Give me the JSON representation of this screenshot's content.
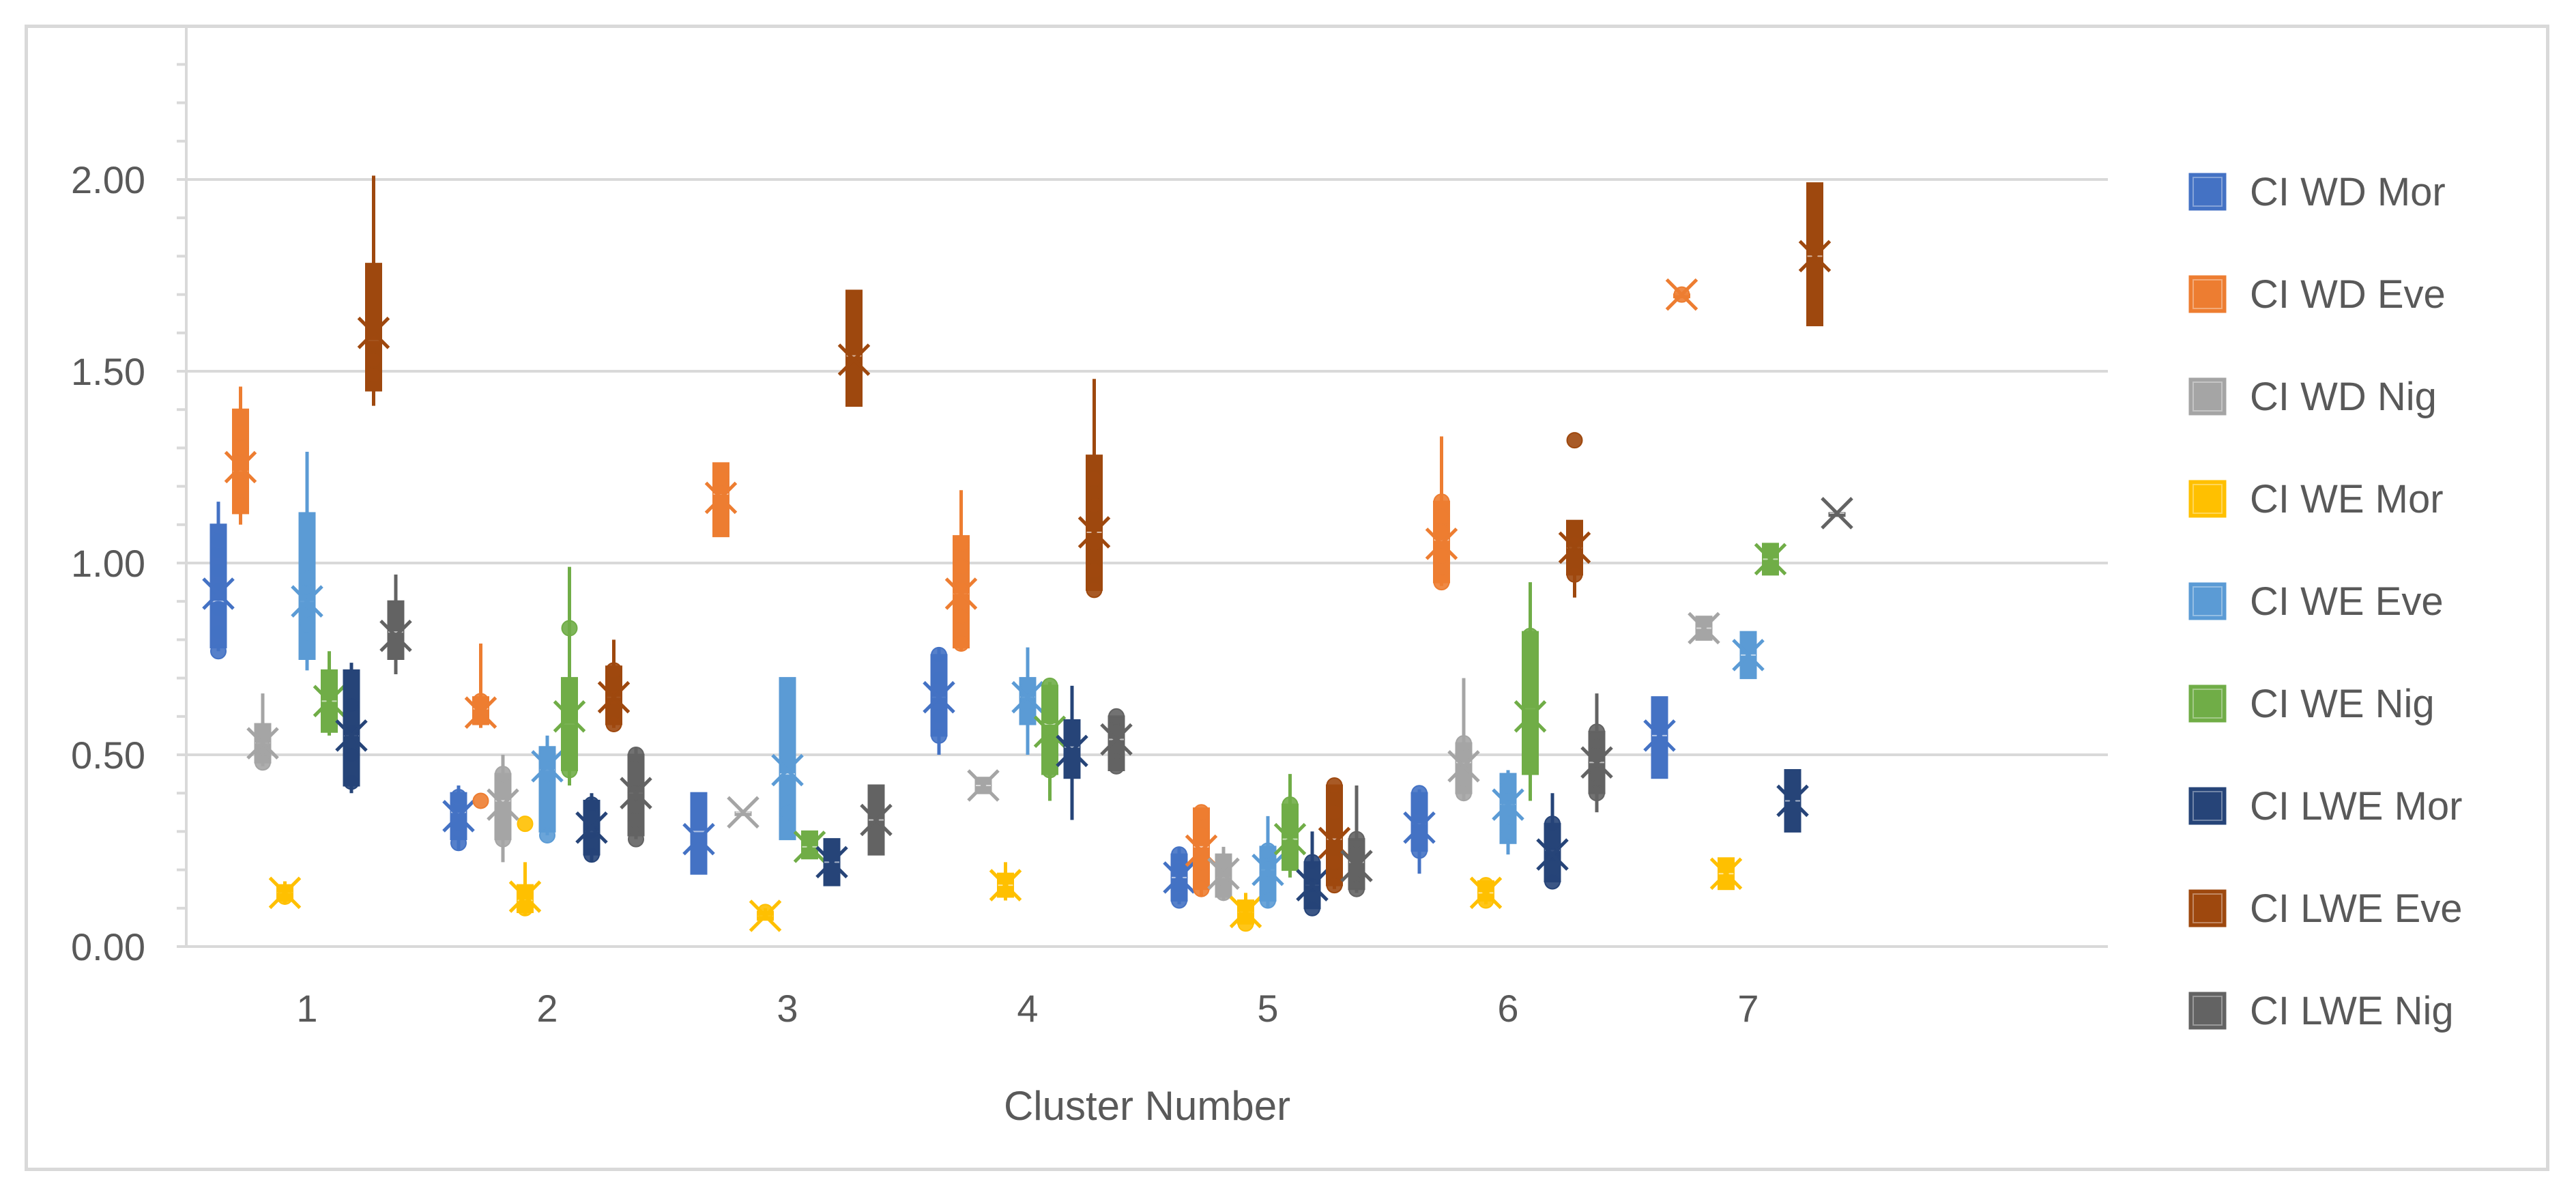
{
  "chart_data": {
    "type": "box",
    "title": "",
    "xlabel": "Cluster Number",
    "ylabel": "",
    "categories": [
      "1",
      "2",
      "3",
      "4",
      "5",
      "6",
      "7"
    ],
    "ylim": [
      0,
      2.3
    ],
    "y_ticks": [
      "0.00",
      "0.50",
      "1.00",
      "1.50",
      "2.00"
    ],
    "y_tick_values": [
      0,
      0.5,
      1.0,
      1.5,
      2.0
    ],
    "grid": true,
    "legend_position": "right",
    "series": [
      {
        "name": "CI WD Mor",
        "color": "#4472c4",
        "boxes": [
          {
            "cluster": 1,
            "min": 0.77,
            "q1": 0.78,
            "median": 0.9,
            "q3": 1.1,
            "max": 1.16,
            "mean": 0.92,
            "points": [
              0.77,
              0.82,
              0.88,
              0.93,
              0.98,
              1.03,
              1.06
            ]
          },
          {
            "cluster": 2,
            "min": 0.25,
            "q1": 0.28,
            "median": 0.35,
            "q3": 0.4,
            "max": 0.42,
            "mean": 0.34,
            "points": [
              0.27,
              0.32,
              0.37,
              0.39
            ]
          },
          {
            "cluster": 3,
            "min": 0.19,
            "q1": 0.19,
            "median": 0.3,
            "q3": 0.4,
            "max": 0.4,
            "mean": 0.28,
            "points": []
          },
          {
            "cluster": 4,
            "min": 0.5,
            "q1": 0.55,
            "median": 0.65,
            "q3": 0.76,
            "max": 0.78,
            "mean": 0.65,
            "points": [
              0.55,
              0.6,
              0.65,
              0.7,
              0.76
            ]
          },
          {
            "cluster": 5,
            "min": 0.11,
            "q1": 0.12,
            "median": 0.18,
            "q3": 0.24,
            "max": 0.26,
            "mean": 0.18,
            "points": [
              0.12,
              0.16,
              0.2,
              0.24
            ]
          },
          {
            "cluster": 6,
            "min": 0.19,
            "q1": 0.25,
            "median": 0.32,
            "q3": 0.4,
            "max": 0.41,
            "mean": 0.31,
            "points": [
              0.25,
              0.32,
              0.36,
              0.4
            ]
          },
          {
            "cluster": 7,
            "min": 0.44,
            "q1": 0.44,
            "median": 0.55,
            "q3": 0.65,
            "max": 0.65,
            "mean": 0.55,
            "points": []
          }
        ]
      },
      {
        "name": "CI WD Eve",
        "color": "#ed7d31",
        "boxes": [
          {
            "cluster": 1,
            "min": 1.1,
            "q1": 1.13,
            "median": 1.24,
            "q3": 1.4,
            "max": 1.46,
            "mean": 1.25,
            "points": [
              1.15,
              1.2,
              1.25,
              1.3,
              1.34
            ]
          },
          {
            "cluster": 2,
            "min": 0.57,
            "q1": 0.58,
            "median": 0.62,
            "q3": 0.65,
            "max": 0.79,
            "mean": 0.61,
            "points": [
              0.38,
              0.6,
              0.64
            ]
          },
          {
            "cluster": 3,
            "min": 1.07,
            "q1": 1.07,
            "median": 1.18,
            "q3": 1.26,
            "max": 1.26,
            "mean": 1.17,
            "points": [
              1.2,
              1.22
            ]
          },
          {
            "cluster": 4,
            "min": 0.77,
            "q1": 0.78,
            "median": 0.92,
            "q3": 1.07,
            "max": 1.19,
            "mean": 0.92,
            "points": [
              0.79,
              0.86,
              0.93,
              0.99,
              1.05
            ]
          },
          {
            "cluster": 5,
            "min": 0.13,
            "q1": 0.15,
            "median": 0.26,
            "q3": 0.36,
            "max": 0.36,
            "mean": 0.25,
            "points": [
              0.15,
              0.22,
              0.29,
              0.35
            ]
          },
          {
            "cluster": 6,
            "min": 0.94,
            "q1": 0.95,
            "median": 1.06,
            "q3": 1.16,
            "max": 1.33,
            "mean": 1.05,
            "points": [
              0.95,
              1.02,
              1.08,
              1.12,
              1.16
            ]
          },
          {
            "cluster": 7,
            "min": 1.7,
            "q1": 1.7,
            "median": 1.7,
            "q3": 1.7,
            "max": 1.7,
            "mean": 1.7,
            "points": [
              1.7
            ]
          }
        ]
      },
      {
        "name": "CI WD Nig",
        "color": "#a5a5a5",
        "boxes": [
          {
            "cluster": 1,
            "min": 0.47,
            "q1": 0.48,
            "median": 0.53,
            "q3": 0.58,
            "max": 0.66,
            "mean": 0.53,
            "points": [
              0.48,
              0.52,
              0.56
            ]
          },
          {
            "cluster": 2,
            "min": 0.22,
            "q1": 0.28,
            "median": 0.38,
            "q3": 0.45,
            "max": 0.5,
            "mean": 0.37,
            "points": [
              0.28,
              0.35,
              0.42,
              0.45
            ]
          },
          {
            "cluster": 3,
            "min": 0.35,
            "q1": 0.35,
            "median": 0.35,
            "q3": 0.35,
            "max": 0.35,
            "mean": 0.35,
            "points": []
          },
          {
            "cluster": 4,
            "min": 0.4,
            "q1": 0.4,
            "median": 0.42,
            "q3": 0.44,
            "max": 0.44,
            "mean": 0.42,
            "points": []
          },
          {
            "cluster": 5,
            "min": 0.12,
            "q1": 0.13,
            "median": 0.18,
            "q3": 0.24,
            "max": 0.26,
            "mean": 0.19,
            "points": [
              0.14,
              0.18,
              0.22
            ]
          },
          {
            "cluster": 6,
            "min": 0.38,
            "q1": 0.4,
            "median": 0.48,
            "q3": 0.53,
            "max": 0.7,
            "mean": 0.47,
            "points": [
              0.4,
              0.45,
              0.5,
              0.53
            ]
          },
          {
            "cluster": 7,
            "min": 0.8,
            "q1": 0.8,
            "median": 0.83,
            "q3": 0.86,
            "max": 0.86,
            "mean": 0.83,
            "points": []
          }
        ]
      },
      {
        "name": "CI WE Mor",
        "color": "#ffc000",
        "boxes": [
          {
            "cluster": 1,
            "min": 0.11,
            "q1": 0.12,
            "median": 0.14,
            "q3": 0.16,
            "max": 0.17,
            "mean": 0.14,
            "points": [
              0.13
            ]
          },
          {
            "cluster": 2,
            "min": 0.08,
            "q1": 0.09,
            "median": 0.12,
            "q3": 0.16,
            "max": 0.22,
            "mean": 0.13,
            "points": [
              0.1,
              0.32
            ]
          },
          {
            "cluster": 3,
            "min": 0.07,
            "q1": 0.07,
            "median": 0.08,
            "q3": 0.09,
            "max": 0.1,
            "mean": 0.08,
            "points": [
              0.09
            ]
          },
          {
            "cluster": 4,
            "min": 0.12,
            "q1": 0.13,
            "median": 0.16,
            "q3": 0.19,
            "max": 0.22,
            "mean": 0.16,
            "points": []
          },
          {
            "cluster": 5,
            "min": 0.06,
            "q1": 0.06,
            "median": 0.09,
            "q3": 0.12,
            "max": 0.14,
            "mean": 0.09,
            "points": [
              0.06,
              0.1
            ]
          },
          {
            "cluster": 6,
            "min": 0.11,
            "q1": 0.12,
            "median": 0.14,
            "q3": 0.17,
            "max": 0.17,
            "mean": 0.14,
            "points": [
              0.12,
              0.16
            ]
          },
          {
            "cluster": 7,
            "min": 0.15,
            "q1": 0.15,
            "median": 0.19,
            "q3": 0.23,
            "max": 0.23,
            "mean": 0.19,
            "points": []
          }
        ]
      },
      {
        "name": "CI WE Eve",
        "color": "#5b9bd5",
        "boxes": [
          {
            "cluster": 1,
            "min": 0.72,
            "q1": 0.75,
            "median": 0.9,
            "q3": 1.13,
            "max": 1.29,
            "mean": 0.9,
            "points": [
              0.78,
              0.84,
              0.9,
              0.96
            ]
          },
          {
            "cluster": 2,
            "min": 0.29,
            "q1": 0.3,
            "median": 0.46,
            "q3": 0.52,
            "max": 0.55,
            "mean": 0.47,
            "points": [
              0.29,
              0.45,
              0.5
            ]
          },
          {
            "cluster": 3,
            "min": 0.28,
            "q1": 0.28,
            "median": 0.45,
            "q3": 0.7,
            "max": 0.7,
            "mean": 0.46,
            "points": [
              0.35
            ]
          },
          {
            "cluster": 4,
            "min": 0.5,
            "q1": 0.58,
            "median": 0.65,
            "q3": 0.7,
            "max": 0.78,
            "mean": 0.65,
            "points": [
              0.64,
              0.68
            ]
          },
          {
            "cluster": 5,
            "min": 0.1,
            "q1": 0.12,
            "median": 0.2,
            "q3": 0.26,
            "max": 0.34,
            "mean": 0.2,
            "points": [
              0.12,
              0.2,
              0.25
            ]
          },
          {
            "cluster": 6,
            "min": 0.24,
            "q1": 0.27,
            "median": 0.37,
            "q3": 0.45,
            "max": 0.46,
            "mean": 0.37,
            "points": [
              0.3,
              0.36,
              0.42
            ]
          },
          {
            "cluster": 7,
            "min": 0.7,
            "q1": 0.7,
            "median": 0.76,
            "q3": 0.82,
            "max": 0.82,
            "mean": 0.76,
            "points": []
          }
        ]
      },
      {
        "name": "CI WE Nig",
        "color": "#70ad47",
        "boxes": [
          {
            "cluster": 1,
            "min": 0.55,
            "q1": 0.56,
            "median": 0.64,
            "q3": 0.72,
            "max": 0.77,
            "mean": 0.64,
            "points": []
          },
          {
            "cluster": 2,
            "min": 0.42,
            "q1": 0.46,
            "median": 0.58,
            "q3": 0.7,
            "max": 0.99,
            "mean": 0.6,
            "points": [
              0.46,
              0.52,
              0.57,
              0.83
            ]
          },
          {
            "cluster": 3,
            "min": 0.23,
            "q1": 0.23,
            "median": 0.26,
            "q3": 0.3,
            "max": 0.3,
            "mean": 0.26,
            "points": []
          },
          {
            "cluster": 4,
            "min": 0.38,
            "q1": 0.45,
            "median": 0.58,
            "q3": 0.68,
            "max": 0.69,
            "mean": 0.56,
            "points": [
              0.46,
              0.52,
              0.6,
              0.68
            ]
          },
          {
            "cluster": 5,
            "min": 0.18,
            "q1": 0.2,
            "median": 0.28,
            "q3": 0.37,
            "max": 0.45,
            "mean": 0.28,
            "points": [
              0.26,
              0.31,
              0.37
            ]
          },
          {
            "cluster": 6,
            "min": 0.38,
            "q1": 0.45,
            "median": 0.62,
            "q3": 0.82,
            "max": 0.95,
            "mean": 0.6,
            "points": [
              0.5,
              0.61,
              0.72,
              0.81
            ]
          },
          {
            "cluster": 7,
            "min": 0.97,
            "q1": 0.97,
            "median": 1.01,
            "q3": 1.05,
            "max": 1.05,
            "mean": 1.01,
            "points": []
          }
        ]
      },
      {
        "name": "CI LWE Mor",
        "color": "#264478",
        "boxes": [
          {
            "cluster": 1,
            "min": 0.4,
            "q1": 0.42,
            "median": 0.55,
            "q3": 0.72,
            "max": 0.74,
            "mean": 0.55,
            "points": [
              0.43,
              0.5,
              0.56,
              0.63
            ]
          },
          {
            "cluster": 2,
            "min": 0.22,
            "q1": 0.24,
            "median": 0.3,
            "q3": 0.38,
            "max": 0.4,
            "mean": 0.31,
            "points": [
              0.24,
              0.3,
              0.37
            ]
          },
          {
            "cluster": 3,
            "min": 0.16,
            "q1": 0.16,
            "median": 0.22,
            "q3": 0.28,
            "max": 0.28,
            "mean": 0.22,
            "points": []
          },
          {
            "cluster": 4,
            "min": 0.33,
            "q1": 0.44,
            "median": 0.52,
            "q3": 0.59,
            "max": 0.68,
            "mean": 0.51,
            "points": []
          },
          {
            "cluster": 5,
            "min": 0.1,
            "q1": 0.1,
            "median": 0.16,
            "q3": 0.22,
            "max": 0.3,
            "mean": 0.16,
            "points": [
              0.1,
              0.16,
              0.22
            ]
          },
          {
            "cluster": 6,
            "min": 0.17,
            "q1": 0.17,
            "median": 0.25,
            "q3": 0.32,
            "max": 0.4,
            "mean": 0.24,
            "points": [
              0.17,
              0.24,
              0.32
            ]
          },
          {
            "cluster": 7,
            "min": 0.3,
            "q1": 0.3,
            "median": 0.38,
            "q3": 0.46,
            "max": 0.46,
            "mean": 0.38,
            "points": []
          }
        ]
      },
      {
        "name": "CI LWE Eve",
        "color": "#9e480e",
        "boxes": [
          {
            "cluster": 1,
            "min": 1.41,
            "q1": 1.45,
            "median": 1.58,
            "q3": 1.78,
            "max": 2.01,
            "mean": 1.6,
            "points": [
              1.49,
              1.53,
              1.58
            ]
          },
          {
            "cluster": 2,
            "min": 0.57,
            "q1": 0.58,
            "median": 0.65,
            "q3": 0.73,
            "max": 0.8,
            "mean": 0.65,
            "points": [
              0.58,
              0.65,
              0.72
            ]
          },
          {
            "cluster": 3,
            "min": 1.41,
            "q1": 1.41,
            "median": 1.54,
            "q3": 1.71,
            "max": 1.71,
            "mean": 1.53,
            "points": []
          },
          {
            "cluster": 4,
            "min": 0.93,
            "q1": 0.93,
            "median": 1.08,
            "q3": 1.28,
            "max": 1.48,
            "mean": 1.08,
            "points": [
              0.93,
              0.98,
              1.05,
              1.15,
              1.22
            ]
          },
          {
            "cluster": 5,
            "min": 0.15,
            "q1": 0.16,
            "median": 0.28,
            "q3": 0.42,
            "max": 0.42,
            "mean": 0.27,
            "points": [
              0.16,
              0.22,
              0.35,
              0.42
            ]
          },
          {
            "cluster": 6,
            "min": 0.91,
            "q1": 0.97,
            "median": 1.04,
            "q3": 1.11,
            "max": 1.11,
            "mean": 1.04,
            "points": [
              0.97,
              1.05,
              1.32
            ]
          },
          {
            "cluster": 7,
            "min": 1.62,
            "q1": 1.62,
            "median": 1.8,
            "q3": 1.99,
            "max": 1.99,
            "mean": 1.8,
            "points": []
          }
        ]
      },
      {
        "name": "CI LWE Nig",
        "color": "#636363",
        "boxes": [
          {
            "cluster": 1,
            "min": 0.71,
            "q1": 0.75,
            "median": 0.82,
            "q3": 0.9,
            "max": 0.97,
            "mean": 0.81,
            "points": []
          },
          {
            "cluster": 2,
            "min": 0.28,
            "q1": 0.29,
            "median": 0.4,
            "q3": 0.5,
            "max": 0.52,
            "mean": 0.4,
            "points": [
              0.28,
              0.33,
              0.4,
              0.5
            ]
          },
          {
            "cluster": 3,
            "min": 0.24,
            "q1": 0.24,
            "median": 0.33,
            "q3": 0.42,
            "max": 0.42,
            "mean": 0.33,
            "points": []
          },
          {
            "cluster": 4,
            "min": 0.46,
            "q1": 0.46,
            "median": 0.54,
            "q3": 0.6,
            "max": 0.6,
            "mean": 0.54,
            "points": [
              0.47,
              0.52,
              0.56,
              0.6
            ]
          },
          {
            "cluster": 5,
            "min": 0.14,
            "q1": 0.15,
            "median": 0.22,
            "q3": 0.28,
            "max": 0.42,
            "mean": 0.21,
            "points": [
              0.15,
              0.2,
              0.24,
              0.28
            ]
          },
          {
            "cluster": 6,
            "min": 0.35,
            "q1": 0.4,
            "median": 0.48,
            "q3": 0.56,
            "max": 0.66,
            "mean": 0.48,
            "points": [
              0.4,
              0.45,
              0.5,
              0.56
            ]
          },
          {
            "cluster": 7,
            "min": 1.13,
            "q1": 1.13,
            "median": 1.13,
            "q3": 1.13,
            "max": 1.13,
            "mean": 1.13,
            "points": []
          }
        ]
      }
    ]
  }
}
